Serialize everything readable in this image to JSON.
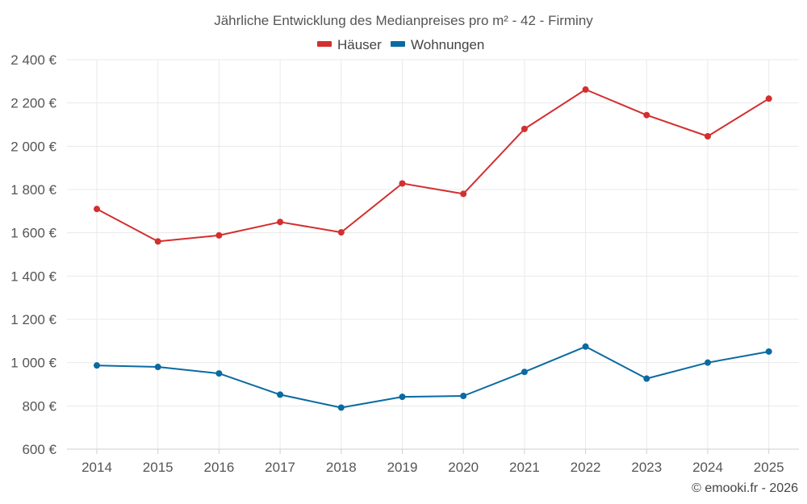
{
  "chart_data": {
    "type": "line",
    "title": "Jährliche Entwicklung des Medianpreises pro m² - 42 - Firminy",
    "categories": [
      "2014",
      "2015",
      "2016",
      "2017",
      "2018",
      "2019",
      "2020",
      "2021",
      "2022",
      "2023",
      "2024",
      "2025"
    ],
    "series": [
      {
        "name": "Häuser",
        "color": "#d32f2f",
        "values": [
          1710,
          1560,
          1588,
          1650,
          1602,
          1828,
          1780,
          2080,
          2262,
          2144,
          2046,
          2220
        ]
      },
      {
        "name": "Wohnungen",
        "color": "#0a6aa1",
        "values": [
          987,
          980,
          950,
          852,
          792,
          842,
          846,
          957,
          1074,
          926,
          1000,
          1051
        ]
      }
    ],
    "yticks": [
      "600 €",
      "800 €",
      "1 000 €",
      "1 200 €",
      "1 400 €",
      "1 600 €",
      "1 800 €",
      "2 000 €",
      "2 200 €",
      "2 400 €"
    ],
    "ylim": [
      600,
      2400
    ],
    "xlabel": "",
    "ylabel": "",
    "grid": true,
    "legend": "top-center"
  },
  "credit": "© emooki.fr - 2026"
}
